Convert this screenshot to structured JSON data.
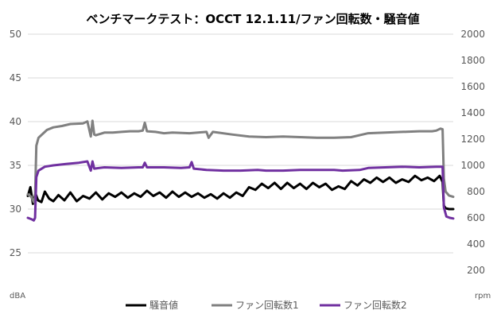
{
  "chart_data": {
    "type": "line",
    "title": "ベンチマークテスト：OCCT 12.1.11/ファン回転数・騒音値",
    "x_range": [
      0,
      1000
    ],
    "left_axis": {
      "unit": "dBA",
      "ylim": [
        20,
        50
      ],
      "ticks": [
        "25",
        "30",
        "35",
        "40",
        "45",
        "50"
      ]
    },
    "right_axis": {
      "unit": "rpm",
      "ylim": [
        0,
        2000
      ],
      "ticks": [
        "200",
        "400",
        "600",
        "800",
        "1000",
        "1200",
        "1400",
        "1600",
        "1800",
        "2000"
      ]
    },
    "legend_position": "bottom",
    "series": [
      {
        "name": "騒音値",
        "axis": "left",
        "color": "#000000",
        "points": [
          [
            0,
            31.5
          ],
          [
            6,
            32.5
          ],
          [
            12,
            30.6
          ],
          [
            18,
            31.8
          ],
          [
            24,
            31.0
          ],
          [
            32,
            30.8
          ],
          [
            40,
            32.0
          ],
          [
            50,
            31.2
          ],
          [
            60,
            30.9
          ],
          [
            72,
            31.6
          ],
          [
            86,
            31.0
          ],
          [
            100,
            31.9
          ],
          [
            115,
            30.9
          ],
          [
            130,
            31.5
          ],
          [
            145,
            31.2
          ],
          [
            160,
            31.9
          ],
          [
            175,
            31.1
          ],
          [
            190,
            31.8
          ],
          [
            205,
            31.4
          ],
          [
            220,
            31.9
          ],
          [
            235,
            31.3
          ],
          [
            250,
            31.8
          ],
          [
            265,
            31.4
          ],
          [
            280,
            32.1
          ],
          [
            295,
            31.5
          ],
          [
            310,
            31.9
          ],
          [
            325,
            31.3
          ],
          [
            340,
            32.0
          ],
          [
            355,
            31.4
          ],
          [
            370,
            31.9
          ],
          [
            385,
            31.4
          ],
          [
            400,
            31.8
          ],
          [
            415,
            31.3
          ],
          [
            430,
            31.7
          ],
          [
            445,
            31.2
          ],
          [
            460,
            31.8
          ],
          [
            475,
            31.3
          ],
          [
            490,
            31.9
          ],
          [
            505,
            31.5
          ],
          [
            520,
            32.5
          ],
          [
            535,
            32.2
          ],
          [
            550,
            32.9
          ],
          [
            565,
            32.4
          ],
          [
            580,
            33.0
          ],
          [
            595,
            32.3
          ],
          [
            610,
            33.0
          ],
          [
            625,
            32.4
          ],
          [
            640,
            32.9
          ],
          [
            655,
            32.3
          ],
          [
            670,
            33.0
          ],
          [
            685,
            32.5
          ],
          [
            700,
            32.9
          ],
          [
            715,
            32.2
          ],
          [
            730,
            32.6
          ],
          [
            745,
            32.3
          ],
          [
            760,
            33.2
          ],
          [
            775,
            32.7
          ],
          [
            790,
            33.4
          ],
          [
            805,
            33.0
          ],
          [
            820,
            33.6
          ],
          [
            835,
            33.1
          ],
          [
            850,
            33.6
          ],
          [
            865,
            33.0
          ],
          [
            880,
            33.4
          ],
          [
            895,
            33.1
          ],
          [
            910,
            33.8
          ],
          [
            925,
            33.3
          ],
          [
            940,
            33.6
          ],
          [
            955,
            33.2
          ],
          [
            968,
            33.8
          ],
          [
            975,
            33.1
          ],
          [
            978,
            30.4
          ],
          [
            982,
            30.1
          ],
          [
            990,
            30.0
          ],
          [
            1000,
            30.0
          ]
        ]
      },
      {
        "name": "ファン回転数1",
        "axis": "right",
        "color": "#808080",
        "points": [
          [
            0,
            780
          ],
          [
            8,
            760
          ],
          [
            14,
            720
          ],
          [
            17,
            760
          ],
          [
            20,
            1150
          ],
          [
            25,
            1210
          ],
          [
            35,
            1240
          ],
          [
            45,
            1270
          ],
          [
            60,
            1290
          ],
          [
            80,
            1300
          ],
          [
            100,
            1315
          ],
          [
            130,
            1320
          ],
          [
            140,
            1335
          ],
          [
            148,
            1220
          ],
          [
            152,
            1340
          ],
          [
            156,
            1235
          ],
          [
            160,
            1230
          ],
          [
            180,
            1250
          ],
          [
            200,
            1250
          ],
          [
            220,
            1255
          ],
          [
            240,
            1260
          ],
          [
            260,
            1260
          ],
          [
            270,
            1265
          ],
          [
            275,
            1325
          ],
          [
            280,
            1260
          ],
          [
            300,
            1255
          ],
          [
            320,
            1245
          ],
          [
            340,
            1250
          ],
          [
            380,
            1245
          ],
          [
            420,
            1255
          ],
          [
            425,
            1210
          ],
          [
            435,
            1255
          ],
          [
            480,
            1235
          ],
          [
            520,
            1220
          ],
          [
            560,
            1215
          ],
          [
            600,
            1220
          ],
          [
            640,
            1215
          ],
          [
            680,
            1210
          ],
          [
            720,
            1210
          ],
          [
            760,
            1215
          ],
          [
            800,
            1245
          ],
          [
            840,
            1250
          ],
          [
            880,
            1255
          ],
          [
            920,
            1260
          ],
          [
            950,
            1260
          ],
          [
            960,
            1265
          ],
          [
            970,
            1280
          ],
          [
            975,
            1275
          ],
          [
            978,
            900
          ],
          [
            982,
            800
          ],
          [
            990,
            770
          ],
          [
            1000,
            760
          ]
        ]
      },
      {
        "name": "ファン回転数2",
        "axis": "right",
        "color": "#7030a0",
        "points": [
          [
            0,
            600
          ],
          [
            8,
            590
          ],
          [
            14,
            580
          ],
          [
            17,
            600
          ],
          [
            20,
            910
          ],
          [
            25,
            960
          ],
          [
            40,
            990
          ],
          [
            60,
            1000
          ],
          [
            90,
            1010
          ],
          [
            120,
            1020
          ],
          [
            140,
            1030
          ],
          [
            148,
            960
          ],
          [
            152,
            1030
          ],
          [
            156,
            975
          ],
          [
            180,
            985
          ],
          [
            220,
            980
          ],
          [
            260,
            985
          ],
          [
            270,
            985
          ],
          [
            275,
            1020
          ],
          [
            280,
            985
          ],
          [
            320,
            985
          ],
          [
            360,
            980
          ],
          [
            380,
            985
          ],
          [
            385,
            1025
          ],
          [
            390,
            975
          ],
          [
            420,
            965
          ],
          [
            460,
            960
          ],
          [
            500,
            960
          ],
          [
            540,
            965
          ],
          [
            560,
            960
          ],
          [
            600,
            960
          ],
          [
            640,
            965
          ],
          [
            680,
            965
          ],
          [
            700,
            965
          ],
          [
            720,
            965
          ],
          [
            740,
            960
          ],
          [
            780,
            965
          ],
          [
            800,
            980
          ],
          [
            840,
            985
          ],
          [
            880,
            990
          ],
          [
            920,
            985
          ],
          [
            960,
            990
          ],
          [
            975,
            990
          ],
          [
            978,
            680
          ],
          [
            984,
            610
          ],
          [
            992,
            600
          ],
          [
            1000,
            595
          ]
        ]
      }
    ]
  }
}
